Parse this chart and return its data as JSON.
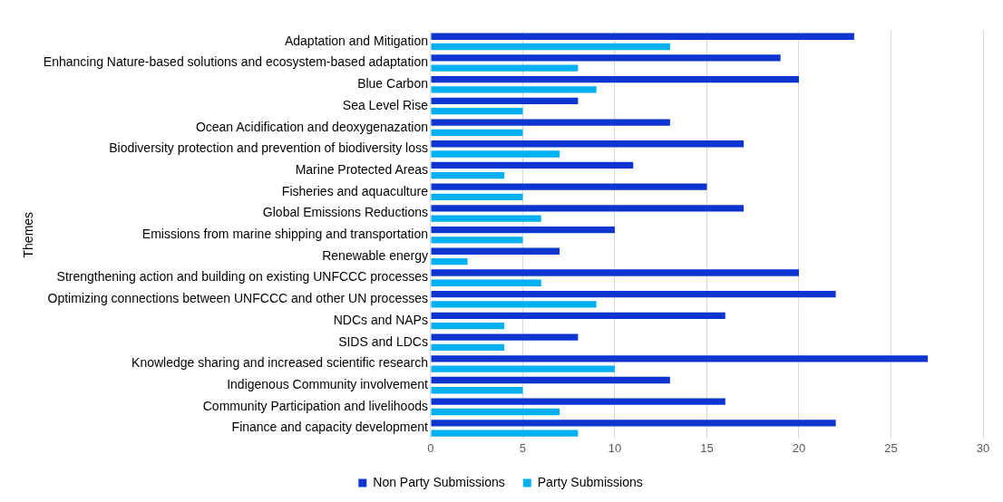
{
  "chart_data": {
    "type": "bar",
    "orientation": "horizontal",
    "ylabel": "Themes",
    "categories": [
      "Adaptation and Mitigation",
      "Enhancing Nature-based solutions and ecosystem-based adaptation",
      "Blue Carbon",
      "Sea Level Rise",
      "Ocean Acidification and deoxygenazation",
      "Biodiversity protection and prevention of biodiversity loss",
      "Marine Protected Areas",
      "Fisheries and aquaculture",
      "Global Emissions Reductions",
      "Emissions from marine shipping and transportation",
      "Renewable energy",
      "Strengthening action and building on existing UNFCCC processes",
      "Optimizing connections between UNFCCC and other UN processes",
      "NDCs and NAPs",
      "SIDS and LDCs",
      "Knowledge sharing and increased scientific research",
      "Indigenous Community involvement",
      "Community Participation and livelihoods",
      "Finance and capacity development"
    ],
    "series": [
      {
        "name": "Non Party Submissions",
        "color": "#0f35d0",
        "values": [
          23,
          19,
          20,
          8,
          13,
          17,
          11,
          15,
          17,
          10,
          7,
          20,
          22,
          16,
          8,
          27,
          13,
          16,
          22
        ]
      },
      {
        "name": "Party Submissions",
        "color": "#00b0f0",
        "values": [
          13,
          8,
          9,
          5,
          5,
          7,
          4,
          5,
          6,
          5,
          2,
          6,
          9,
          4,
          4,
          10,
          5,
          7,
          8
        ]
      }
    ],
    "xlim": [
      0,
      30
    ],
    "xticks": [
      0,
      5,
      10,
      15,
      20,
      25,
      30
    ],
    "grid": "x",
    "legend": "bottom"
  }
}
